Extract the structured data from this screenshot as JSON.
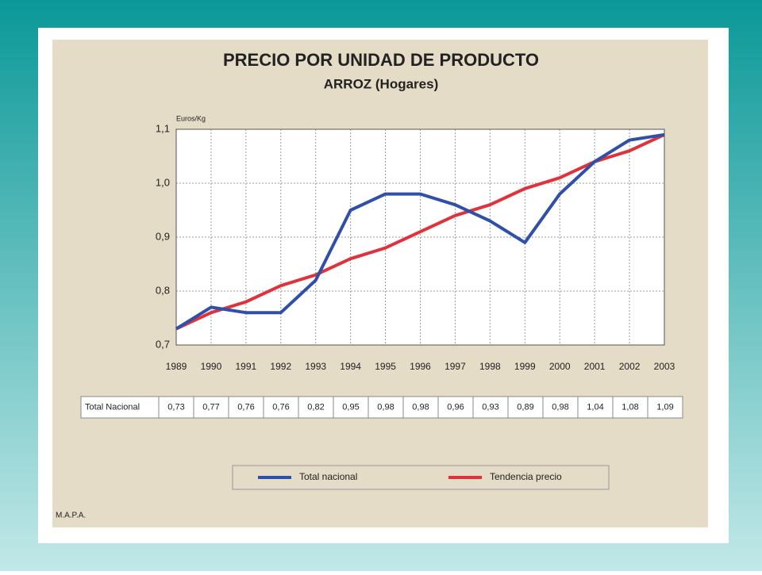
{
  "chart_data": {
    "type": "line",
    "title": "PRECIO POR UNIDAD DE PRODUCTO",
    "subtitle": "ARROZ (Hogares)",
    "y_label": "Euros/Kg",
    "source": "M.A.P.A.",
    "table_row_label": "Total Nacional",
    "categories": [
      "1989",
      "1990",
      "1991",
      "1992",
      "1993",
      "1994",
      "1995",
      "1996",
      "1997",
      "1998",
      "1999",
      "2000",
      "2001",
      "2002",
      "2003"
    ],
    "series": [
      {
        "name": "Total nacional",
        "color": "#2f4fa8",
        "values": [
          0.73,
          0.77,
          0.76,
          0.76,
          0.82,
          0.95,
          0.98,
          0.98,
          0.96,
          0.93,
          0.89,
          0.98,
          1.04,
          1.08,
          1.09
        ],
        "value_labels": [
          "0,73",
          "0,77",
          "0,76",
          "0,76",
          "0,82",
          "0,95",
          "0,98",
          "0,98",
          "0,96",
          "0,93",
          "0,89",
          "0,98",
          "1,04",
          "1,08",
          "1,09"
        ]
      },
      {
        "name": "Tendencia precio",
        "color": "#e0323a",
        "values": [
          0.73,
          0.76,
          0.78,
          0.81,
          0.83,
          0.86,
          0.88,
          0.91,
          0.94,
          0.96,
          0.99,
          1.01,
          1.04,
          1.06,
          1.09
        ]
      }
    ],
    "ylim": [
      0.7,
      1.1
    ],
    "yticks": [
      {
        "value": 0.7,
        "label": "0,7"
      },
      {
        "value": 0.8,
        "label": "0,8"
      },
      {
        "value": 0.9,
        "label": "0,9"
      },
      {
        "value": 1.0,
        "label": "1,0"
      },
      {
        "value": 1.1,
        "label": "1,1"
      }
    ],
    "grid": true
  }
}
